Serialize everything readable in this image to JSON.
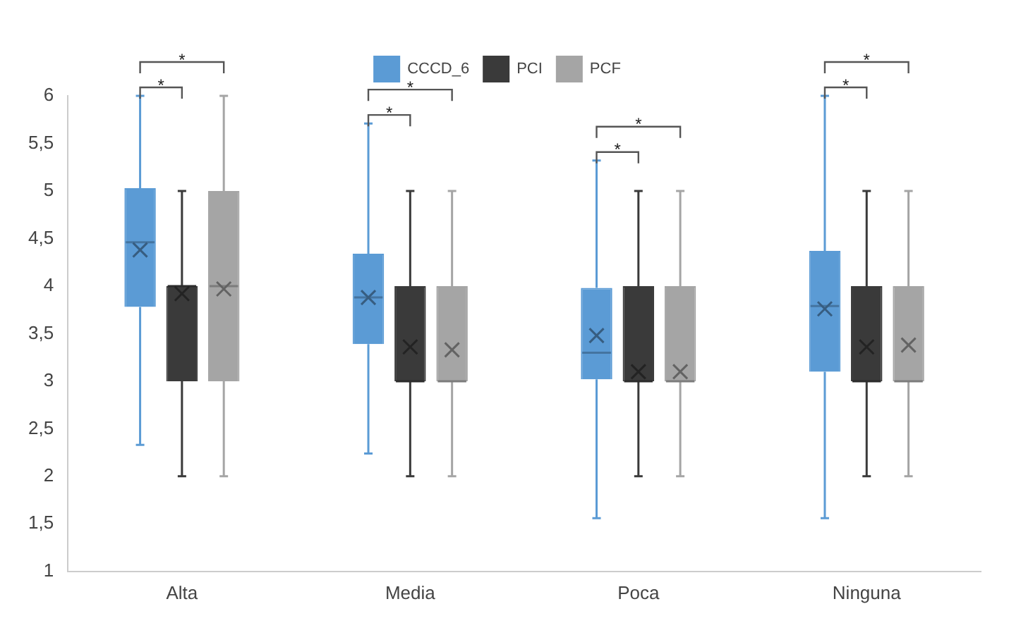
{
  "chart_data": {
    "type": "box",
    "categories": [
      "Alta",
      "Media",
      "Poca",
      "Ninguna"
    ],
    "series": [
      {
        "name": "CCCD_6",
        "color": "#5b9bd5",
        "boxes": [
          {
            "low": 2.33,
            "q1": 3.78,
            "median": 4.46,
            "q3": 5.03,
            "high": 6,
            "mean": 4.38
          },
          {
            "low": 2.24,
            "q1": 3.39,
            "median": 3.88,
            "q3": 4.34,
            "high": 5.71,
            "mean": 3.88
          },
          {
            "low": 1.56,
            "q1": 3.02,
            "median": 3.3,
            "q3": 3.98,
            "high": 5.32,
            "mean": 3.48
          },
          {
            "low": 1.56,
            "q1": 3.1,
            "median": 3.79,
            "q3": 4.37,
            "high": 6,
            "mean": 3.76
          }
        ]
      },
      {
        "name": "PCI",
        "color": "#3a3a3a",
        "boxes": [
          {
            "low": 2,
            "q1": 3,
            "median": 4,
            "q3": 4,
            "high": 5,
            "mean": 3.92
          },
          {
            "low": 2,
            "q1": 3,
            "median": 3,
            "q3": 4,
            "high": 5,
            "mean": 3.36
          },
          {
            "low": 2,
            "q1": 3,
            "median": 3,
            "q3": 4,
            "high": 5,
            "mean": 3.1
          },
          {
            "low": 2,
            "q1": 3,
            "median": 3,
            "q3": 4,
            "high": 5,
            "mean": 3.36
          }
        ]
      },
      {
        "name": "PCF",
        "color": "#a5a5a5",
        "boxes": [
          {
            "low": 2,
            "q1": 3,
            "median": 4,
            "q3": 5,
            "high": 6,
            "mean": 3.97
          },
          {
            "low": 2,
            "q1": 3,
            "median": 3,
            "q3": 4,
            "high": 5,
            "mean": 3.33
          },
          {
            "low": 2,
            "q1": 3,
            "median": 3,
            "q3": 4,
            "high": 5,
            "mean": 3.1
          },
          {
            "low": 2,
            "q1": 3,
            "median": 3,
            "q3": 4,
            "high": 5,
            "mean": 3.38
          }
        ]
      }
    ],
    "ylim": [
      1,
      6
    ],
    "yticks": [
      1,
      {
        "value": 1.5,
        "label": "1,5"
      },
      2,
      {
        "value": 2.5,
        "label": "2,5"
      },
      3,
      {
        "value": 3.5,
        "label": "3,5"
      },
      4,
      {
        "value": 4.5,
        "label": "4,5"
      },
      5,
      {
        "value": 5.5,
        "label": "5,5"
      },
      6
    ],
    "annotations": [
      "*",
      "*",
      "*",
      "*",
      "*",
      "*",
      "*",
      "*"
    ],
    "legend": "top",
    "grid": false,
    "marker": "cross"
  }
}
